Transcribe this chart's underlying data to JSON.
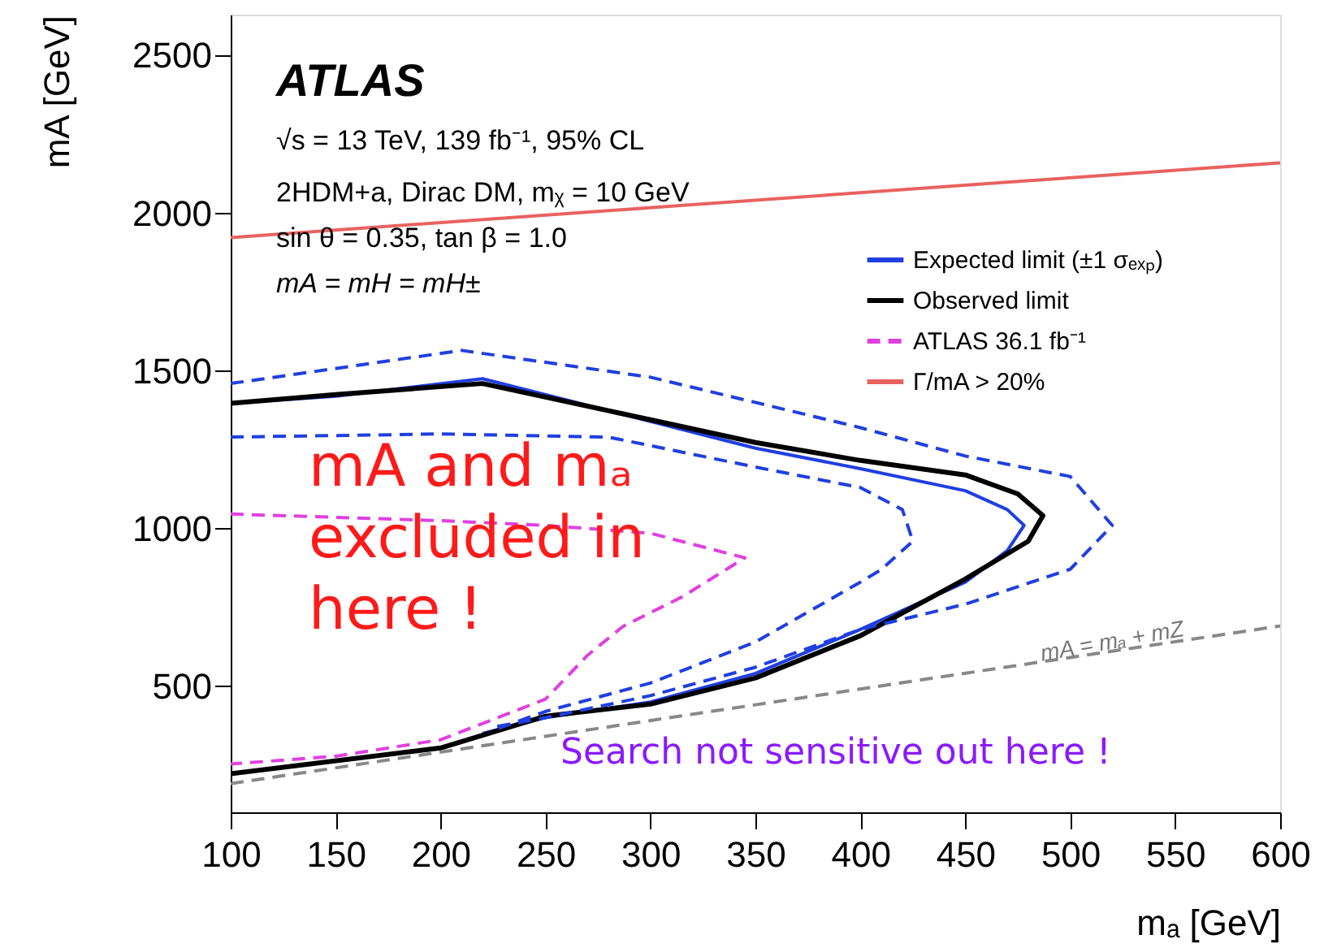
{
  "chart_data": {
    "type": "line",
    "xlabel": "mₐ [GeV]",
    "ylabel": "mA [GeV]",
    "xlim": [
      100,
      600
    ],
    "xticks": [
      100,
      150,
      200,
      250,
      300,
      350,
      400,
      450,
      500,
      550,
      600
    ],
    "ylim": [
      100,
      2630
    ],
    "yticks": [
      500,
      1000,
      1500,
      2000,
      2500
    ],
    "grid": false,
    "legend": "top right",
    "marker": "none",
    "annotations": [
      "ATLAS",
      "√s = 13 TeV, 139 fb⁻¹, 95% CL",
      "2HDM+a, Dirac DM, mᵪ = 10 GeV",
      "sin θ = 0.35, tan β = 1.0",
      "mA = mH = mH±",
      "mA and mₐ excluded in here !",
      "Search not sensitive out here !",
      {
        "text": "mA = mₐ + mZ",
        "x": 520,
        "y": 640
      }
    ],
    "series": [
      {
        "name": "Expected limit (±1 σₑₓₚ)",
        "color": "#1f3fe0",
        "line_style": "solid",
        "x": [
          100,
          150,
          220,
          300,
          350,
          400,
          450,
          470,
          478,
          470,
          450,
          400,
          350,
          300,
          250,
          220
        ],
        "values": [
          1397,
          1420,
          1475,
          1340,
          1255,
          1190,
          1120,
          1060,
          1010,
          930,
          830,
          680,
          540,
          450,
          400,
          350
        ]
      },
      {
        "name": "Observed limit",
        "color": "#000000",
        "line_style": "solid",
        "x": [
          100,
          150,
          220,
          300,
          350,
          400,
          450,
          475,
          487,
          480,
          450,
          400,
          350,
          300,
          250,
          200,
          100
        ],
        "values": [
          1397,
          1425,
          1460,
          1345,
          1273,
          1216,
          1170,
          1110,
          1041,
          960,
          840,
          660,
          526,
          443,
          405,
          304,
          222
        ]
      },
      {
        "name": "ATLAS 36.1 fb⁻¹",
        "color": "#e040e0",
        "line_style": "dashed",
        "x": [
          100,
          200,
          250,
          300,
          345,
          315,
          287,
          270,
          250,
          200,
          150,
          100
        ],
        "values": [
          1046,
          1025,
          1010,
          985,
          907,
          783,
          690,
          598,
          459,
          330,
          278,
          253
        ]
      },
      {
        "name": "Γ/mA > 20%",
        "color": "#e8625f",
        "line_style": "solid",
        "x": [
          100,
          600
        ],
        "values": [
          1923,
          2160
        ]
      },
      {
        "color": "#1f3fe0",
        "line_style": "dashed",
        "x": [
          100,
          210,
          300,
          350,
          400,
          450,
          500,
          520,
          500,
          450,
          400,
          350,
          300,
          250,
          225
        ],
        "values": [
          1460,
          1565,
          1480,
          1400,
          1320,
          1230,
          1165,
          1010,
          871,
          760,
          680,
          560,
          470,
          400,
          370
        ]
      },
      {
        "color": "#1f3fe0",
        "line_style": "dashed",
        "x": [
          100,
          200,
          280,
          350,
          400,
          420,
          425,
          410,
          400,
          350,
          300,
          250,
          225
        ],
        "values": [
          1290,
          1300,
          1290,
          1195,
          1130,
          1060,
          960,
          870,
          830,
          640,
          510,
          420,
          360
        ]
      },
      {
        "color": "#888888",
        "line_style": "dashed",
        "x": [
          100,
          600
        ],
        "values": [
          191,
          691
        ]
      }
    ]
  }
}
